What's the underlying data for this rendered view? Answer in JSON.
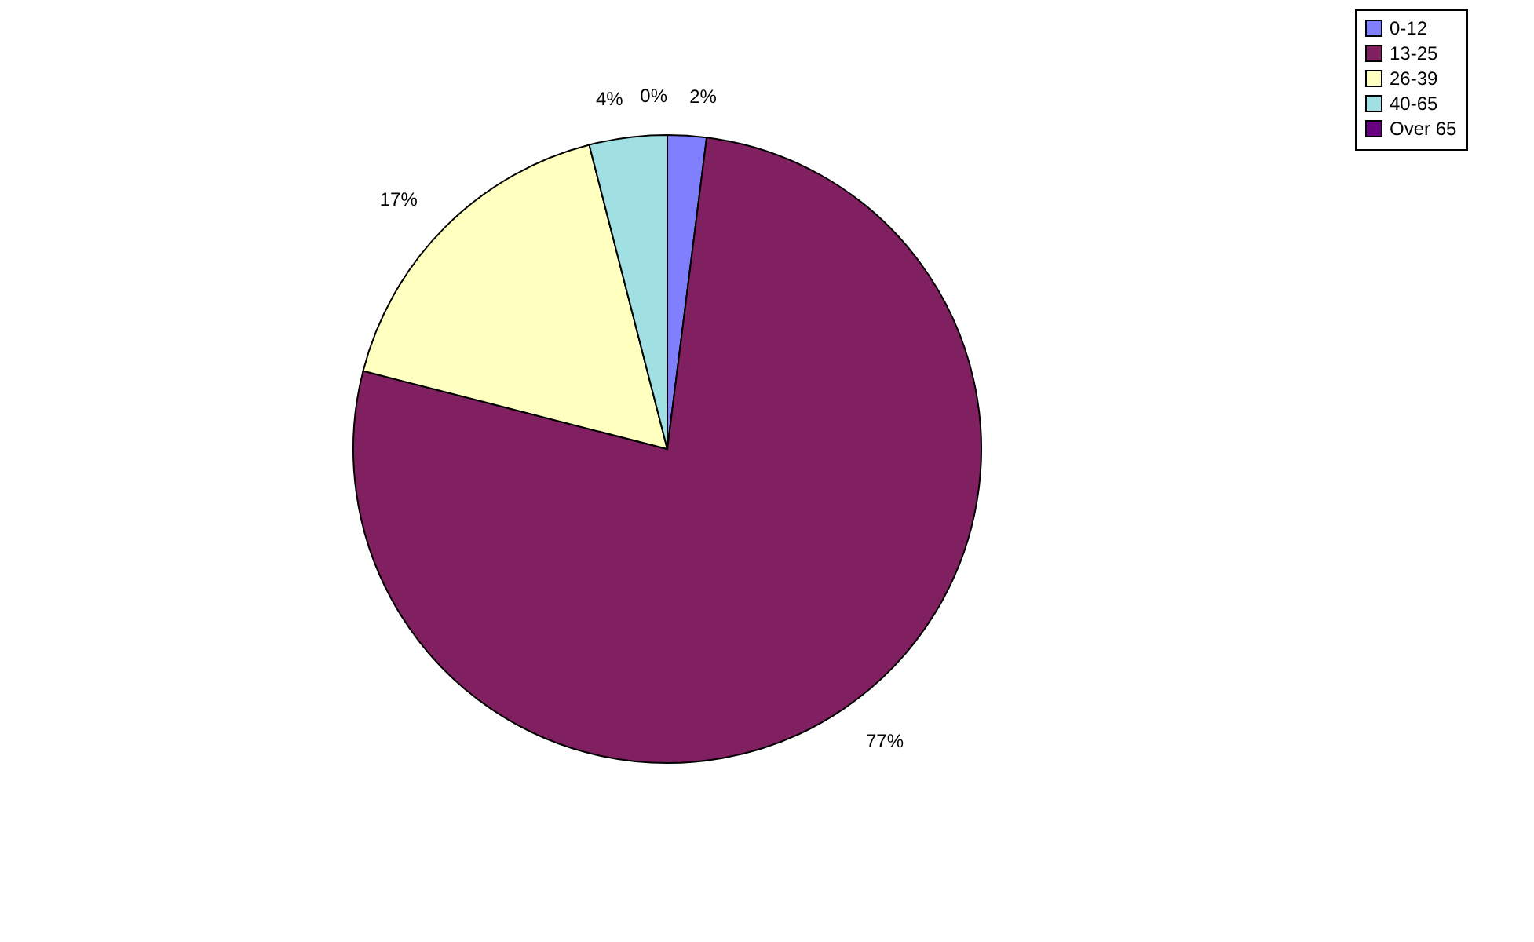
{
  "chart_data": {
    "type": "pie",
    "categories": [
      "0-12",
      "13-25",
      "26-39",
      "40-65",
      "Over 65"
    ],
    "values": [
      2,
      77,
      17,
      4,
      0
    ],
    "colors": [
      "#8080ff",
      "#802060",
      "#ffffc0",
      "#a0e0e3",
      "#660080"
    ],
    "value_labels": [
      "2%",
      "77%",
      "17%",
      "4%",
      "0%"
    ],
    "legend": "right"
  }
}
